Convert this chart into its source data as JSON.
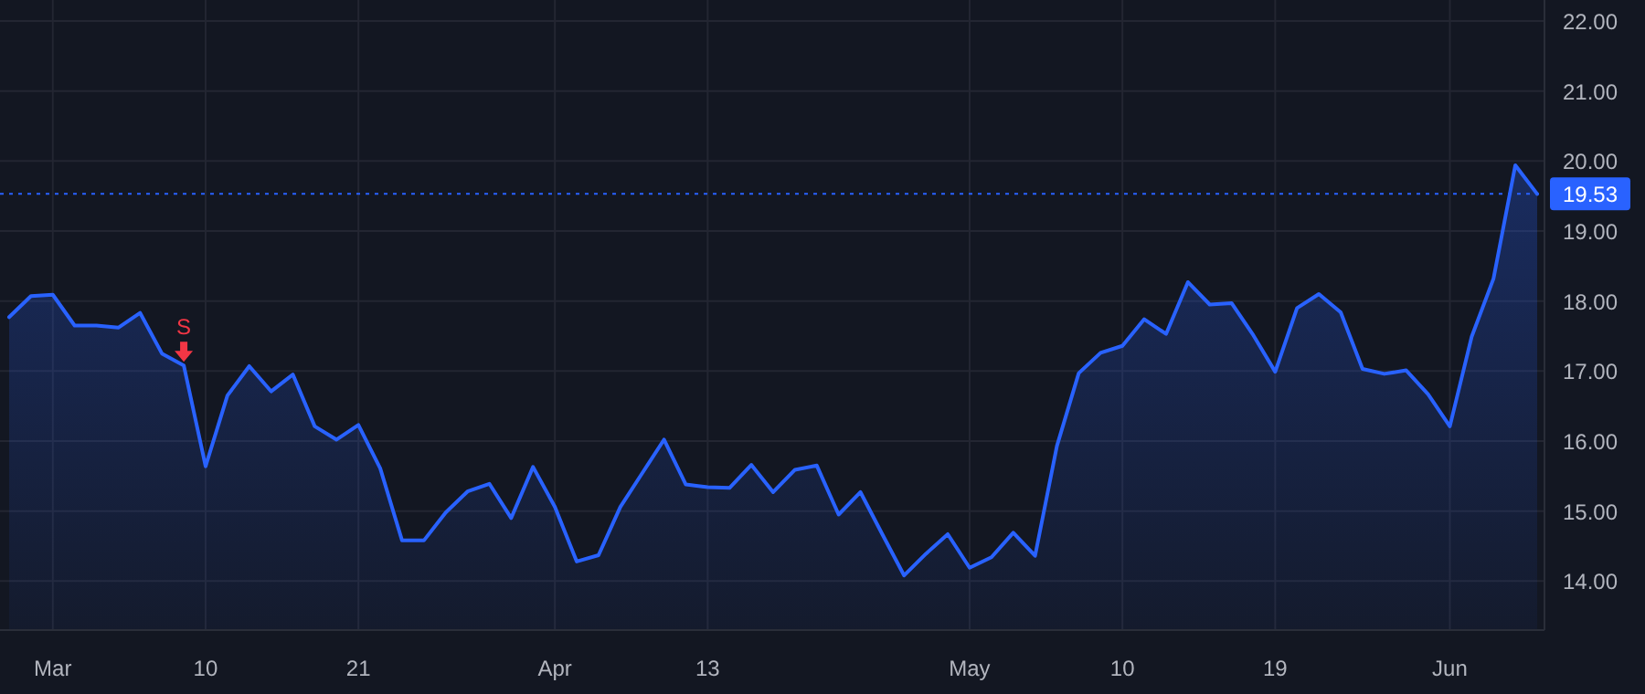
{
  "chart_data": {
    "type": "area",
    "categories": [
      null,
      null,
      "Mar",
      null,
      null,
      null,
      null,
      null,
      null,
      "10",
      null,
      null,
      null,
      null,
      null,
      null,
      "21",
      null,
      null,
      null,
      null,
      null,
      null,
      null,
      null,
      "Apr",
      null,
      null,
      null,
      null,
      null,
      null,
      "13",
      null,
      null,
      null,
      null,
      null,
      null,
      null,
      null,
      null,
      null,
      null,
      "May",
      null,
      null,
      null,
      null,
      null,
      null,
      "10",
      null,
      null,
      null,
      null,
      null,
      null,
      "19",
      null,
      null,
      null,
      null,
      null,
      null,
      null,
      "Jun",
      null,
      null,
      null,
      null
    ],
    "series": [
      {
        "color": "#2962ff",
        "values": [
          17.77,
          18.07,
          18.09,
          17.65,
          17.65,
          17.62,
          17.83,
          17.25,
          17.08,
          15.64,
          16.65,
          17.07,
          16.71,
          16.95,
          16.21,
          16.02,
          16.23,
          15.61,
          14.58,
          14.58,
          14.98,
          15.28,
          15.39,
          14.9,
          15.63,
          15.06,
          14.28,
          14.37,
          15.06,
          15.54,
          16.02,
          15.38,
          15.34,
          15.33,
          15.66,
          15.27,
          15.59,
          15.65,
          14.95,
          15.27,
          14.67,
          14.08,
          14.39,
          14.67,
          14.19,
          14.34,
          14.69,
          14.36,
          15.93,
          16.97,
          17.26,
          17.36,
          17.74,
          17.53,
          18.27,
          17.95,
          17.97,
          17.51,
          16.99,
          17.9,
          18.1,
          17.84,
          17.03,
          16.96,
          17.01,
          16.67,
          16.21,
          17.49,
          18.32,
          19.94,
          19.53
        ]
      }
    ],
    "ylim": [
      13.3,
      22.3
    ],
    "yticks": [
      {
        "value": 14,
        "label": "14.00"
      },
      {
        "value": 15,
        "label": "15.00"
      },
      {
        "value": 16,
        "label": "16.00"
      },
      {
        "value": 17,
        "label": "17.00"
      },
      {
        "value": 18,
        "label": "18.00"
      },
      {
        "value": 19,
        "label": "19.00"
      },
      {
        "value": 20,
        "label": "20.00"
      },
      {
        "value": 21,
        "label": "21.00"
      },
      {
        "value": 22,
        "label": "22.00"
      }
    ],
    "grid": true,
    "ref_lines": [
      {
        "axis": "y",
        "value": 19.53,
        "label": "19.53",
        "color": "#2962ff",
        "line_style": "dotted"
      }
    ],
    "annotations": [
      {
        "text": "S",
        "y": 17.08
      }
    ]
  }
}
